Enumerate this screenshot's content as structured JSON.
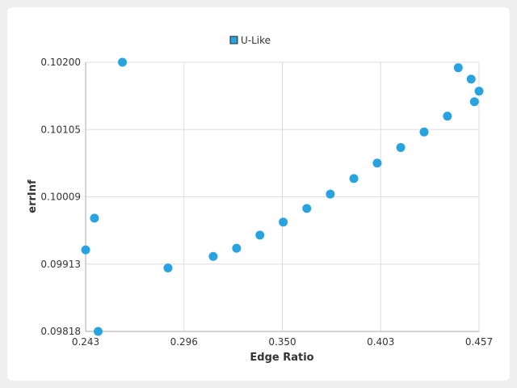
{
  "chart_data": {
    "type": "scatter",
    "title": "",
    "xlabel": "Edge Ratio",
    "ylabel": "errInf",
    "xlim": [
      0.243,
      0.457
    ],
    "ylim": [
      0.09818,
      0.102
    ],
    "x_ticks": [
      "0.243",
      "0.296",
      "0.350",
      "0.403",
      "0.457"
    ],
    "y_ticks": [
      "0.10200",
      "0.10105",
      "0.10009",
      "0.09913",
      "0.09818"
    ],
    "grid": true,
    "legend": "top-center",
    "series": [
      {
        "name": "U-Like",
        "color": "#29a3e0",
        "points": [
          {
            "x": 0.243,
            "y": 0.099337
          },
          {
            "x": 0.2478,
            "y": 0.099787
          },
          {
            "x": 0.2498,
            "y": 0.09818
          },
          {
            "x": 0.263,
            "y": 0.102
          },
          {
            "x": 0.2878,
            "y": 0.099081
          },
          {
            "x": 0.3124,
            "y": 0.099244
          },
          {
            "x": 0.3251,
            "y": 0.09936
          },
          {
            "x": 0.3378,
            "y": 0.099546
          },
          {
            "x": 0.3505,
            "y": 0.099732
          },
          {
            "x": 0.3633,
            "y": 0.099925
          },
          {
            "x": 0.3761,
            "y": 0.100129
          },
          {
            "x": 0.3889,
            "y": 0.100349
          },
          {
            "x": 0.4016,
            "y": 0.100569
          },
          {
            "x": 0.4144,
            "y": 0.10079
          },
          {
            "x": 0.4271,
            "y": 0.10101
          },
          {
            "x": 0.4398,
            "y": 0.101235
          },
          {
            "x": 0.4457,
            "y": 0.101922
          },
          {
            "x": 0.4527,
            "y": 0.10176
          },
          {
            "x": 0.4545,
            "y": 0.10144
          },
          {
            "x": 0.457,
            "y": 0.10159
          }
        ]
      }
    ]
  }
}
